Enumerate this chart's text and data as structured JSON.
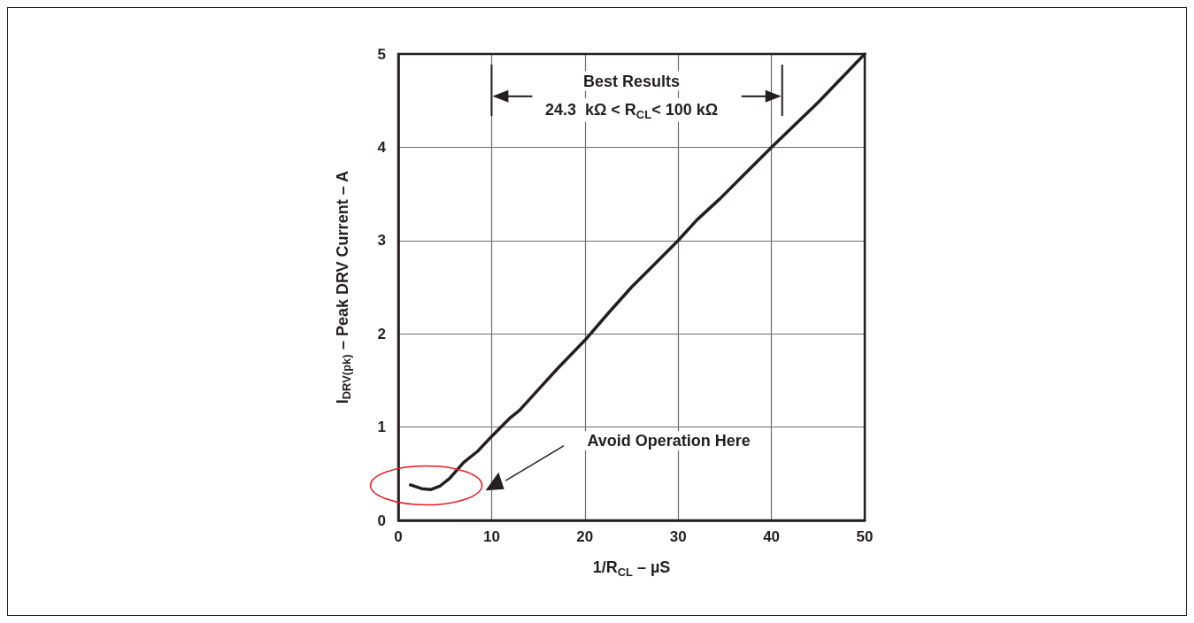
{
  "chart_data": {
    "type": "line",
    "xlabel": "1/R$_{CL}$ – µS",
    "ylabel": "I$_{DRV(pk)}$ – Peak DRV Current – A",
    "x": [
      1.3,
      2.5,
      3.5,
      4.5,
      5.5,
      7,
      8.5,
      10,
      12,
      13,
      15,
      17,
      20,
      22.5,
      25,
      27.5,
      30,
      32,
      34.5,
      37,
      40,
      45,
      50
    ],
    "series": [
      {
        "color": "#231f20",
        "values": [
          0.38,
          0.34,
          0.33,
          0.37,
          0.45,
          0.62,
          0.74,
          0.9,
          1.1,
          1.18,
          1.4,
          1.62,
          1.93,
          2.22,
          2.5,
          2.75,
          3.0,
          3.22,
          3.45,
          3.7,
          4.0,
          4.48,
          5.0
        ]
      }
    ],
    "xlim": [
      0,
      50
    ],
    "xticks": [
      0,
      10,
      20,
      30,
      40,
      50
    ],
    "ylim": [
      0,
      5
    ],
    "yticks": [
      0,
      1,
      2,
      3,
      4,
      5
    ],
    "grid": true,
    "marker": "none",
    "line_style": "solid",
    "annotations": [
      "Best Results",
      "24.3  kΩ < R$_{CL}$< 100 kΩ",
      "Avoid Operation Here"
    ]
  }
}
